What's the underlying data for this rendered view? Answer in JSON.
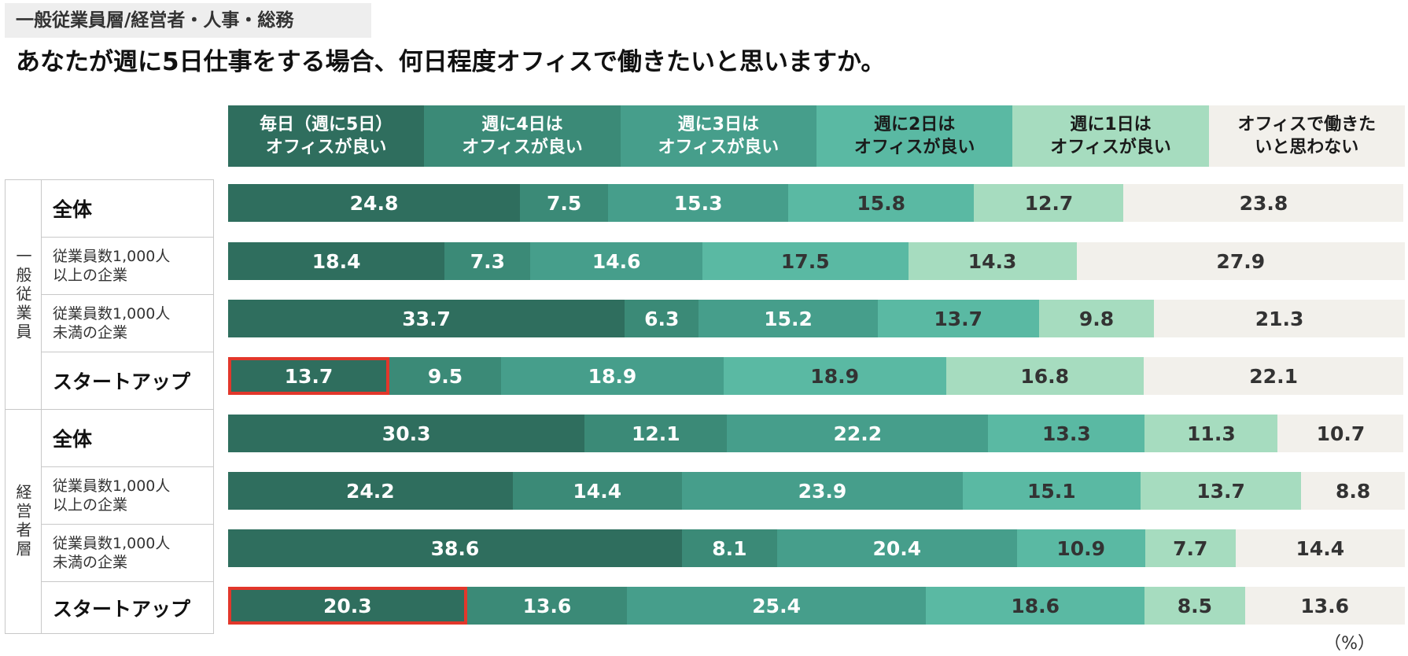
{
  "header": {
    "subtitle": "一般従業員層/経営者・人事・総務",
    "title": "あなたが週に5日仕事をする場合、何日程度オフィスで働きたいと思いますか。"
  },
  "colors": {
    "series": [
      "#2f6e5e",
      "#3b8a77",
      "#469e8b",
      "#5ab9a3",
      "#a6dcbf",
      "#f2f0eb"
    ],
    "text_light": "#ffffff",
    "text_dark": "#333333",
    "highlight": "#e2372b"
  },
  "groups": [
    {
      "label": "一般従業員"
    },
    {
      "label": "経営者層"
    }
  ],
  "unit_label": "（%）",
  "chart_data": {
    "type": "bar",
    "orientation": "horizontal",
    "stacked": true,
    "xlim": [
      0,
      100
    ],
    "categories": [
      "全体",
      "従業員数1,000人\n以上の企業",
      "従業員数1,000人\n未満の企業",
      "スタートアップ",
      "全体",
      "従業員数1,000人\n以上の企業",
      "従業員数1,000人\n未満の企業",
      "スタートアップ"
    ],
    "series": [
      {
        "name": "毎日（週に5日）\nオフィスが良い",
        "values": [
          24.8,
          18.4,
          33.7,
          13.7,
          30.3,
          24.2,
          38.6,
          20.3
        ]
      },
      {
        "name": "週に4日は\nオフィスが良い",
        "values": [
          7.5,
          7.3,
          6.3,
          9.5,
          12.1,
          14.4,
          8.1,
          13.6
        ]
      },
      {
        "name": "週に3日は\nオフィスが良い",
        "values": [
          15.3,
          14.6,
          15.2,
          18.9,
          22.2,
          23.9,
          20.4,
          25.4
        ]
      },
      {
        "name": "週に2日は\nオフィスが良い",
        "values": [
          15.8,
          17.5,
          13.7,
          18.9,
          13.3,
          15.1,
          10.9,
          18.6
        ]
      },
      {
        "name": "週に1日は\nオフィスが良い",
        "values": [
          12.7,
          14.3,
          9.8,
          16.8,
          11.3,
          13.7,
          7.7,
          8.5
        ]
      },
      {
        "name": "オフィスで働きた\nいと思わない",
        "values": [
          23.8,
          27.9,
          21.3,
          22.1,
          10.7,
          8.8,
          14.4,
          13.6
        ]
      }
    ],
    "highlighted": [
      {
        "row": 3,
        "series": 0
      },
      {
        "row": 7,
        "series": 0
      }
    ]
  }
}
